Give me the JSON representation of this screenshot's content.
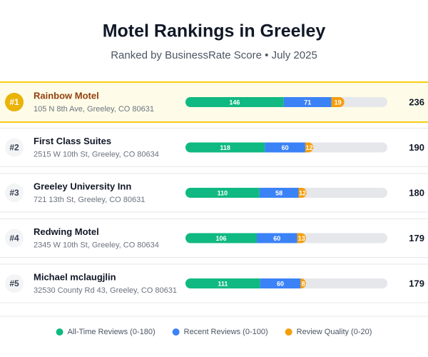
{
  "chart_data": {
    "type": "bar",
    "stacked": true,
    "orientation": "horizontal",
    "title": "Motel Rankings in Greeley",
    "subtitle": "Ranked by BusinessRate Score • July 2025",
    "ranks": [
      "#1",
      "#2",
      "#3",
      "#4",
      "#5"
    ],
    "categories": [
      "Rainbow Motel",
      "First Class Suites",
      "Greeley University Inn",
      "Redwing Motel",
      "Michael mclaugjlin"
    ],
    "addresses": [
      "105 N 8th Ave, Greeley, CO 80631",
      "2515 W 10th St, Greeley, CO 80634",
      "721 13th St, Greeley, CO 80631",
      "2345 W 10th St, Greeley, CO 80634",
      "32530 County Rd 43, Greeley, CO 80631"
    ],
    "totals": [
      236,
      190,
      180,
      179,
      179
    ],
    "xlim": [
      0,
      300
    ],
    "series": [
      {
        "name": "All-Time Reviews (0-180)",
        "color": "#10b981",
        "values": [
          146,
          118,
          110,
          106,
          111
        ]
      },
      {
        "name": "Recent Reviews (0-100)",
        "color": "#3b82f6",
        "values": [
          71,
          60,
          58,
          60,
          60
        ]
      },
      {
        "name": "Review Quality (0-20)",
        "color": "#f59e0b",
        "values": [
          19,
          12,
          12,
          13,
          8
        ]
      }
    ],
    "highlight_index": 0
  }
}
